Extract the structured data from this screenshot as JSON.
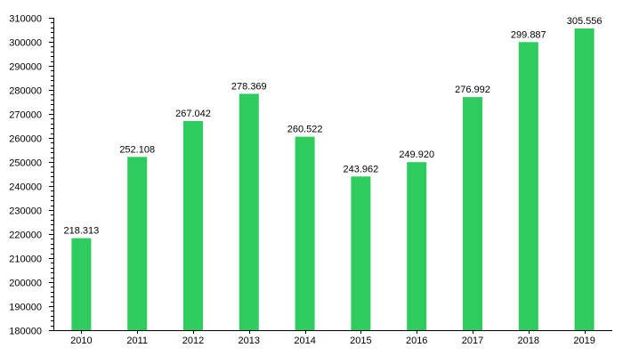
{
  "chart_data": {
    "type": "bar",
    "title": "",
    "xlabel": "",
    "ylabel": "",
    "categories": [
      "2010",
      "2011",
      "2012",
      "2013",
      "2014",
      "2015",
      "2016",
      "2017",
      "2018",
      "2019"
    ],
    "values": [
      218313,
      252108,
      267042,
      278369,
      260522,
      243962,
      249920,
      276992,
      299887,
      305556
    ],
    "value_labels": [
      "218.313",
      "252.108",
      "267.042",
      "278.369",
      "260.522",
      "243.962",
      "249.920",
      "276.992",
      "299.887",
      "305.556"
    ],
    "ylim": [
      180000,
      310000
    ],
    "y_ticks": [
      180000,
      190000,
      200000,
      210000,
      220000,
      230000,
      240000,
      250000,
      260000,
      270000,
      280000,
      290000,
      300000,
      310000
    ],
    "grid": false,
    "legend": "none",
    "bar_color": "#2ecc5f"
  }
}
